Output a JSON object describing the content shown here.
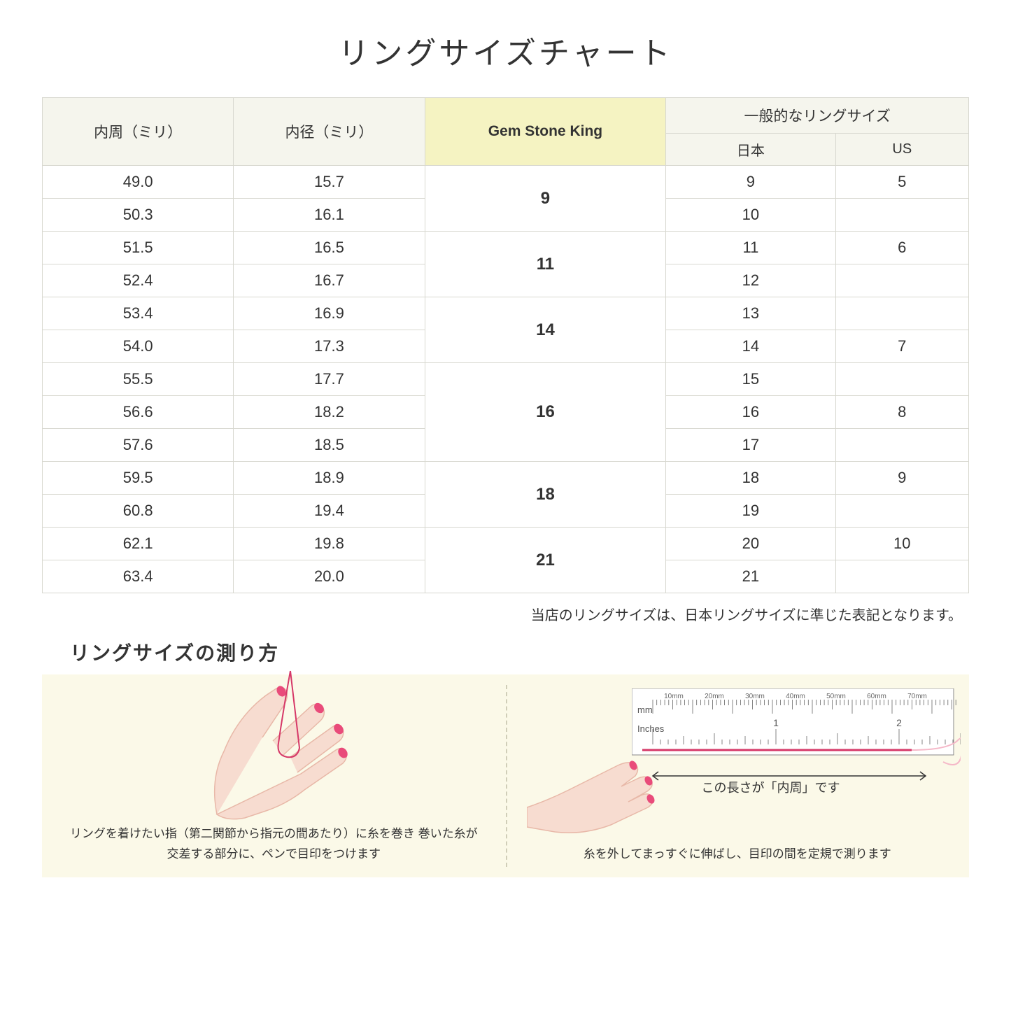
{
  "title": "リングサイズチャート",
  "table": {
    "headers": {
      "circumference": "内周（ミリ）",
      "diameter": "内径（ミリ）",
      "gsk": "Gem Stone King",
      "general": "一般的なリングサイズ",
      "japan": "日本",
      "us": "US"
    },
    "groups": [
      {
        "gsk": "9",
        "rows": [
          {
            "c": "49.0",
            "d": "15.7",
            "jp": "9",
            "us": "5"
          },
          {
            "c": "50.3",
            "d": "16.1",
            "jp": "10",
            "us": ""
          }
        ]
      },
      {
        "gsk": "11",
        "rows": [
          {
            "c": "51.5",
            "d": "16.5",
            "jp": "11",
            "us": "6"
          },
          {
            "c": "52.4",
            "d": "16.7",
            "jp": "12",
            "us": ""
          }
        ]
      },
      {
        "gsk": "14",
        "rows": [
          {
            "c": "53.4",
            "d": "16.9",
            "jp": "13",
            "us": ""
          },
          {
            "c": "54.0",
            "d": "17.3",
            "jp": "14",
            "us": "7"
          }
        ]
      },
      {
        "gsk": "16",
        "rows": [
          {
            "c": "55.5",
            "d": "17.7",
            "jp": "15",
            "us": ""
          },
          {
            "c": "56.6",
            "d": "18.2",
            "jp": "16",
            "us": "8"
          },
          {
            "c": "57.6",
            "d": "18.5",
            "jp": "17",
            "us": ""
          }
        ]
      },
      {
        "gsk": "18",
        "rows": [
          {
            "c": "59.5",
            "d": "18.9",
            "jp": "18",
            "us": "9"
          },
          {
            "c": "60.8",
            "d": "19.4",
            "jp": "19",
            "us": ""
          }
        ]
      },
      {
        "gsk": "21",
        "rows": [
          {
            "c": "62.1",
            "d": "19.8",
            "jp": "20",
            "us": "10"
          },
          {
            "c": "63.4",
            "d": "20.0",
            "jp": "21",
            "us": ""
          }
        ]
      }
    ]
  },
  "note": "当店のリングサイズは、日本リングサイズに準じた表記となります。",
  "howto": {
    "title": "リングサイズの測り方",
    "left_caption": "リングを着けたい指（第二関節から指元の間あたり）に糸を巻き\n巻いた糸が交差する部分に、ペンで目印をつけます",
    "right_caption": "糸を外してまっすぐに伸ばし、目印の間を定規で測ります",
    "measure_label": "この長さが「内周」です",
    "ruler_mm": "mm",
    "ruler_inches": "Inches",
    "ruler_mm_ticks": [
      "10mm",
      "20mm",
      "30mm",
      "40mm",
      "50mm",
      "60mm",
      "70mm"
    ],
    "ruler_inch_ticks": [
      "1",
      "2"
    ]
  },
  "colors": {
    "header_bg": "#f5f5ed",
    "highlight_bg": "#f5f3c2",
    "border": "#d8d8d0",
    "info_bg": "#fbf9e8",
    "hand_skin": "#f7dcd0",
    "hand_outline": "#e8b8a8",
    "nail": "#e94b7a",
    "thread": "#d63868",
    "ruler_bg": "#ffffff",
    "ruler_border": "#888888"
  }
}
